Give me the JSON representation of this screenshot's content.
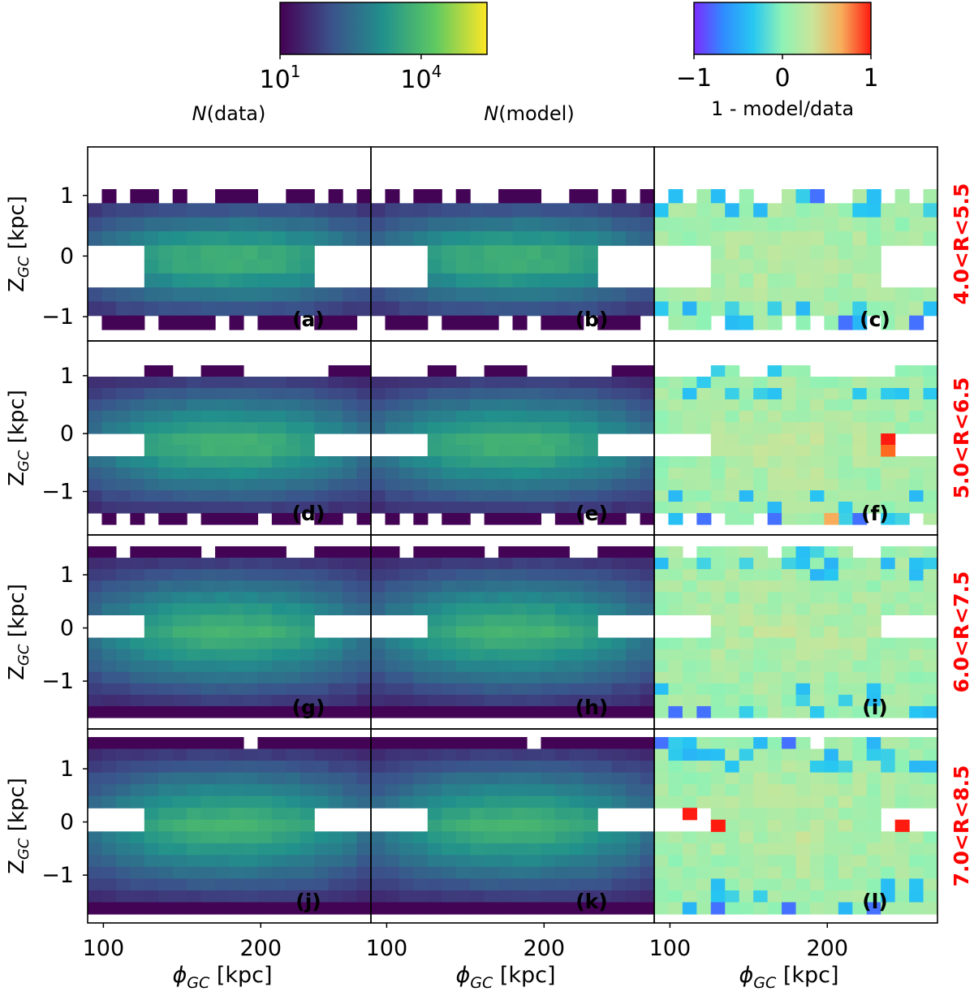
{
  "colorbar_counts": {
    "ticks": [
      {
        "value": 1,
        "base": "10",
        "exp": "1"
      },
      {
        "value": 4,
        "base": "10",
        "exp": "4"
      }
    ],
    "log_range": [
      1,
      5.4
    ],
    "colors": [
      "#440154",
      "#3b528b",
      "#21918c",
      "#5ec962",
      "#fde725"
    ]
  },
  "colorbar_residual": {
    "ticks": [
      "−1",
      "0",
      "1"
    ],
    "tick_values": [
      -1,
      0,
      1
    ],
    "label": "1 - model/data",
    "colors": [
      "#7b2cff",
      "#2f8cff",
      "#27c7f2",
      "#8ef2b5",
      "#c9e59a",
      "#f7ad5b",
      "#ff1b10"
    ]
  },
  "column_labels": {
    "data": {
      "italic": "N",
      "rest": "(data)"
    },
    "model": {
      "italic": "N",
      "rest": "(model)"
    }
  },
  "chart_data": {
    "type": "heatmap",
    "x_axis": {
      "label_symbol": "ϕ",
      "label_sub": "GC",
      "label_unit": "[kpc]",
      "ticks": [
        "100",
        "200"
      ],
      "tick_values": [
        100,
        200
      ],
      "xlim": [
        90,
        270
      ]
    },
    "y_axis": {
      "label_symbol": "Z",
      "label_sub": "GC",
      "label_unit": "[kpc]",
      "ticks": [
        "1",
        "0",
        "−1"
      ],
      "tick_values": [
        1,
        0,
        -1
      ]
    },
    "rows": [
      {
        "range_label": "4.0<R<5.5",
        "ylim": [
          -1.4,
          1.8
        ],
        "panels": [
          "(a)",
          "(b)",
          "(c)"
        ]
      },
      {
        "range_label": "5.0<R<6.5",
        "ylim": [
          -1.75,
          1.6
        ],
        "panels": [
          "(d)",
          "(e)",
          "(f)"
        ]
      },
      {
        "range_label": "6.0<R<7.5",
        "ylim": [
          -1.9,
          1.75
        ],
        "panels": [
          "(g)",
          "(h)",
          "(i)"
        ]
      },
      {
        "range_label": "7.0<R<8.5",
        "ylim": [
          -1.9,
          1.75
        ],
        "panels": [
          "(j)",
          "(k)",
          "(l)"
        ]
      }
    ],
    "notes": "Counts use log10 viridis scale 10^1 to ~10^5.4; residual 1 - model/data on rainbow scale -1 to 1."
  }
}
